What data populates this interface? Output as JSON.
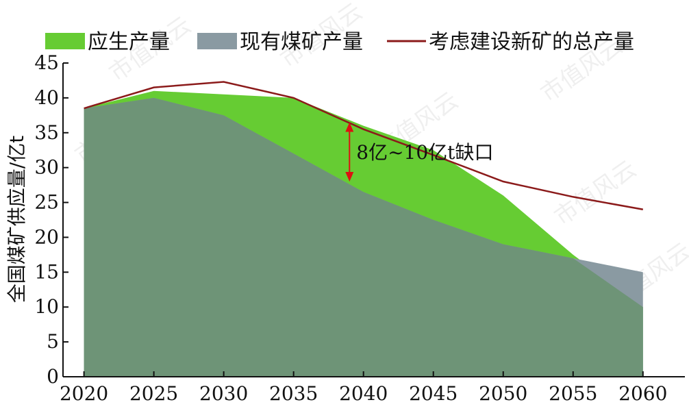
{
  "chart_data": {
    "type": "area",
    "x": [
      2020,
      2025,
      2030,
      2035,
      2040,
      2045,
      2050,
      2055,
      2060
    ],
    "series": [
      {
        "name": "应生产量",
        "kind": "area",
        "color": "#66cc33",
        "values": [
          38.5,
          41.0,
          40.5,
          40.0,
          36.0,
          32.5,
          26.0,
          17.5,
          10.0
        ]
      },
      {
        "name": "现有煤矿产量",
        "kind": "area",
        "color": "#8a9aa2",
        "values": [
          38.5,
          40.0,
          37.5,
          32.0,
          26.5,
          22.5,
          19.0,
          17.0,
          15.0
        ]
      },
      {
        "name": "考虑建设新矿的总产量",
        "kind": "line",
        "color": "#8b1a1a",
        "values": [
          38.5,
          41.5,
          42.3,
          40.0,
          35.5,
          31.8,
          28.0,
          25.8,
          24.0
        ]
      }
    ],
    "xlabel": "",
    "ylabel": "全国煤矿供应量/亿t",
    "ylim": [
      0,
      45
    ],
    "yticks": [
      0,
      5,
      10,
      15,
      20,
      25,
      30,
      35,
      40,
      45
    ],
    "grid": false,
    "legend": "top",
    "annotation": {
      "text": "8亿~10亿t缺口",
      "x": 2039,
      "y_top": 36.5,
      "y_bottom": 28.0,
      "color": "#dd1111"
    },
    "watermark": "市值风云"
  }
}
